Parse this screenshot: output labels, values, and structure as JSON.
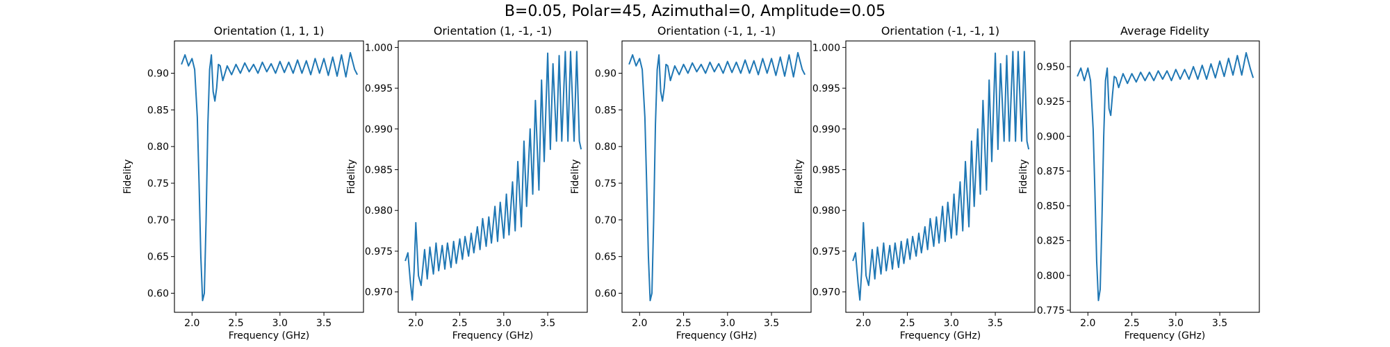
{
  "figure": {
    "suptitle": "B=0.05, Polar=45, Azimuthal=0, Amplitude=0.05",
    "line_color": "#1f77b4"
  },
  "chart_data": [
    {
      "type": "line",
      "title": "Orientation (1, 1, 1)",
      "xlabel": "Frequency (GHz)",
      "ylabel": "Fidelity",
      "xlim": [
        1.8,
        3.95
      ],
      "ylim": [
        0.574,
        0.944
      ],
      "xticks": [
        2.0,
        2.5,
        3.0,
        3.5
      ],
      "xtick_labels": [
        "2.0",
        "2.5",
        "3.0",
        "3.5"
      ],
      "yticks": [
        0.6,
        0.65,
        0.7,
        0.75,
        0.8,
        0.85,
        0.9
      ],
      "ytick_labels": [
        "0.60",
        "0.65",
        "0.70",
        "0.75",
        "0.80",
        "0.85",
        "0.90"
      ],
      "grid": false,
      "series": [
        {
          "x": [
            1.88,
            1.92,
            1.96,
            2.0,
            2.03,
            2.06,
            2.08,
            2.1,
            2.12,
            2.14,
            2.16,
            2.18,
            2.2,
            2.22,
            2.24,
            2.26,
            2.28,
            2.3,
            2.32,
            2.35,
            2.4,
            2.45,
            2.5,
            2.55,
            2.6,
            2.65,
            2.7,
            2.75,
            2.8,
            2.85,
            2.9,
            2.95,
            3.0,
            3.05,
            3.1,
            3.15,
            3.2,
            3.25,
            3.3,
            3.35,
            3.4,
            3.45,
            3.5,
            3.55,
            3.6,
            3.65,
            3.7,
            3.75,
            3.8,
            3.85,
            3.88
          ],
          "y": [
            0.912,
            0.925,
            0.91,
            0.92,
            0.905,
            0.84,
            0.75,
            0.65,
            0.59,
            0.6,
            0.7,
            0.83,
            0.905,
            0.925,
            0.875,
            0.862,
            0.88,
            0.912,
            0.91,
            0.89,
            0.91,
            0.898,
            0.912,
            0.9,
            0.914,
            0.902,
            0.912,
            0.9,
            0.915,
            0.902,
            0.913,
            0.9,
            0.916,
            0.901,
            0.915,
            0.9,
            0.918,
            0.9,
            0.917,
            0.898,
            0.92,
            0.9,
            0.92,
            0.897,
            0.922,
            0.896,
            0.925,
            0.895,
            0.928,
            0.905,
            0.898
          ]
        }
      ]
    },
    {
      "type": "line",
      "title": "Orientation (1, -1, -1)",
      "xlabel": "Frequency (GHz)",
      "ylabel": "Fidelity",
      "xlim": [
        1.8,
        3.95
      ],
      "ylim": [
        0.9675,
        1.0008
      ],
      "xticks": [
        2.0,
        2.5,
        3.0,
        3.5
      ],
      "xtick_labels": [
        "2.0",
        "2.5",
        "3.0",
        "3.5"
      ],
      "yticks": [
        0.97,
        0.975,
        0.98,
        0.985,
        0.99,
        0.995,
        1.0
      ],
      "ytick_labels": [
        "0.970",
        "0.975",
        "0.980",
        "0.985",
        "0.990",
        "0.995",
        "1.000"
      ],
      "grid": false,
      "series": [
        {
          "x": [
            1.88,
            1.91,
            1.94,
            1.96,
            1.98,
            2.0,
            2.03,
            2.06,
            2.1,
            2.13,
            2.16,
            2.2,
            2.23,
            2.26,
            2.3,
            2.33,
            2.36,
            2.4,
            2.43,
            2.46,
            2.5,
            2.53,
            2.56,
            2.6,
            2.63,
            2.66,
            2.7,
            2.73,
            2.76,
            2.8,
            2.83,
            2.86,
            2.9,
            2.93,
            2.96,
            3.0,
            3.03,
            3.06,
            3.1,
            3.13,
            3.16,
            3.2,
            3.23,
            3.26,
            3.3,
            3.33,
            3.36,
            3.4,
            3.43,
            3.46,
            3.5,
            3.53,
            3.56,
            3.6,
            3.63,
            3.66,
            3.7,
            3.73,
            3.76,
            3.8,
            3.83,
            3.86,
            3.88
          ],
          "y": [
            0.9738,
            0.9748,
            0.971,
            0.969,
            0.9725,
            0.9785,
            0.972,
            0.9708,
            0.9752,
            0.9716,
            0.9755,
            0.9722,
            0.976,
            0.9726,
            0.9757,
            0.9728,
            0.976,
            0.973,
            0.9762,
            0.9735,
            0.9765,
            0.974,
            0.9768,
            0.9744,
            0.9772,
            0.9748,
            0.978,
            0.9752,
            0.979,
            0.9756,
            0.9792,
            0.976,
            0.9805,
            0.9762,
            0.981,
            0.9766,
            0.982,
            0.977,
            0.9835,
            0.9775,
            0.986,
            0.978,
            0.9885,
            0.9805,
            0.99,
            0.982,
            0.9935,
            0.9825,
            0.996,
            0.986,
            0.9993,
            0.9875,
            0.998,
            0.9885,
            0.999,
            0.9885,
            0.9995,
            0.9885,
            0.9995,
            0.9885,
            0.9995,
            0.9885,
            0.9875
          ]
        }
      ]
    },
    {
      "type": "line",
      "title": "Orientation (-1, 1, -1)",
      "xlabel": "Frequency (GHz)",
      "ylabel": "Fidelity",
      "xlim": [
        1.8,
        3.95
      ],
      "ylim": [
        0.574,
        0.944
      ],
      "xticks": [
        2.0,
        2.5,
        3.0,
        3.5
      ],
      "xtick_labels": [
        "2.0",
        "2.5",
        "3.0",
        "3.5"
      ],
      "yticks": [
        0.6,
        0.65,
        0.7,
        0.75,
        0.8,
        0.85,
        0.9
      ],
      "ytick_labels": [
        "0.60",
        "0.65",
        "0.70",
        "0.75",
        "0.80",
        "0.85",
        "0.90"
      ],
      "grid": false,
      "series": [
        {
          "x": [
            1.88,
            1.92,
            1.96,
            2.0,
            2.03,
            2.06,
            2.08,
            2.1,
            2.12,
            2.14,
            2.16,
            2.18,
            2.2,
            2.22,
            2.24,
            2.26,
            2.28,
            2.3,
            2.32,
            2.35,
            2.4,
            2.45,
            2.5,
            2.55,
            2.6,
            2.65,
            2.7,
            2.75,
            2.8,
            2.85,
            2.9,
            2.95,
            3.0,
            3.05,
            3.1,
            3.15,
            3.2,
            3.25,
            3.3,
            3.35,
            3.4,
            3.45,
            3.5,
            3.55,
            3.6,
            3.65,
            3.7,
            3.75,
            3.8,
            3.85,
            3.88
          ],
          "y": [
            0.912,
            0.925,
            0.91,
            0.92,
            0.905,
            0.84,
            0.75,
            0.65,
            0.59,
            0.6,
            0.7,
            0.83,
            0.905,
            0.925,
            0.875,
            0.862,
            0.88,
            0.912,
            0.91,
            0.89,
            0.91,
            0.898,
            0.912,
            0.9,
            0.914,
            0.902,
            0.912,
            0.9,
            0.915,
            0.902,
            0.913,
            0.9,
            0.916,
            0.901,
            0.915,
            0.9,
            0.918,
            0.9,
            0.917,
            0.898,
            0.92,
            0.9,
            0.92,
            0.897,
            0.922,
            0.896,
            0.925,
            0.895,
            0.928,
            0.905,
            0.898
          ]
        }
      ]
    },
    {
      "type": "line",
      "title": "Orientation (-1, -1, 1)",
      "xlabel": "Frequency (GHz)",
      "ylabel": "Fidelity",
      "xlim": [
        1.8,
        3.95
      ],
      "ylim": [
        0.9675,
        1.0008
      ],
      "xticks": [
        2.0,
        2.5,
        3.0,
        3.5
      ],
      "xtick_labels": [
        "2.0",
        "2.5",
        "3.0",
        "3.5"
      ],
      "yticks": [
        0.97,
        0.975,
        0.98,
        0.985,
        0.99,
        0.995,
        1.0
      ],
      "ytick_labels": [
        "0.970",
        "0.975",
        "0.980",
        "0.985",
        "0.990",
        "0.995",
        "1.000"
      ],
      "grid": false,
      "series": [
        {
          "x": [
            1.88,
            1.91,
            1.94,
            1.96,
            1.98,
            2.0,
            2.03,
            2.06,
            2.1,
            2.13,
            2.16,
            2.2,
            2.23,
            2.26,
            2.3,
            2.33,
            2.36,
            2.4,
            2.43,
            2.46,
            2.5,
            2.53,
            2.56,
            2.6,
            2.63,
            2.66,
            2.7,
            2.73,
            2.76,
            2.8,
            2.83,
            2.86,
            2.9,
            2.93,
            2.96,
            3.0,
            3.03,
            3.06,
            3.1,
            3.13,
            3.16,
            3.2,
            3.23,
            3.26,
            3.3,
            3.33,
            3.36,
            3.4,
            3.43,
            3.46,
            3.5,
            3.53,
            3.56,
            3.6,
            3.63,
            3.66,
            3.7,
            3.73,
            3.76,
            3.8,
            3.83,
            3.86,
            3.88
          ],
          "y": [
            0.9738,
            0.9748,
            0.971,
            0.969,
            0.9725,
            0.9785,
            0.972,
            0.9708,
            0.9752,
            0.9716,
            0.9755,
            0.9722,
            0.976,
            0.9726,
            0.9757,
            0.9728,
            0.976,
            0.973,
            0.9762,
            0.9735,
            0.9765,
            0.974,
            0.9768,
            0.9744,
            0.9772,
            0.9748,
            0.978,
            0.9752,
            0.979,
            0.9756,
            0.9792,
            0.976,
            0.9805,
            0.9762,
            0.981,
            0.9766,
            0.982,
            0.977,
            0.9835,
            0.9775,
            0.986,
            0.978,
            0.9885,
            0.9805,
            0.99,
            0.982,
            0.9935,
            0.9825,
            0.996,
            0.986,
            0.9993,
            0.9875,
            0.998,
            0.9885,
            0.999,
            0.9885,
            0.9995,
            0.9885,
            0.9995,
            0.9885,
            0.9995,
            0.9885,
            0.9875
          ]
        }
      ]
    },
    {
      "type": "line",
      "title": "Average Fidelity",
      "xlabel": "Frequency (GHz)",
      "ylabel": "Fidelity",
      "xlim": [
        1.8,
        3.95
      ],
      "ylim": [
        0.7735,
        0.9685
      ],
      "xticks": [
        2.0,
        2.5,
        3.0,
        3.5
      ],
      "xtick_labels": [
        "2.0",
        "2.5",
        "3.0",
        "3.5"
      ],
      "yticks": [
        0.775,
        0.8,
        0.825,
        0.85,
        0.875,
        0.9,
        0.925,
        0.95
      ],
      "ytick_labels": [
        "0.775",
        "0.800",
        "0.825",
        "0.850",
        "0.875",
        "0.900",
        "0.925",
        "0.950"
      ],
      "grid": false,
      "series": [
        {
          "x": [
            1.88,
            1.92,
            1.96,
            2.0,
            2.03,
            2.06,
            2.08,
            2.1,
            2.12,
            2.14,
            2.16,
            2.18,
            2.2,
            2.22,
            2.24,
            2.26,
            2.28,
            2.3,
            2.32,
            2.35,
            2.4,
            2.45,
            2.5,
            2.55,
            2.6,
            2.65,
            2.7,
            2.75,
            2.8,
            2.85,
            2.9,
            2.95,
            3.0,
            3.05,
            3.1,
            3.15,
            3.2,
            3.25,
            3.3,
            3.35,
            3.4,
            3.45,
            3.5,
            3.55,
            3.6,
            3.65,
            3.7,
            3.75,
            3.8,
            3.85,
            3.88
          ],
          "y": [
            0.943,
            0.949,
            0.94,
            0.949,
            0.94,
            0.905,
            0.86,
            0.81,
            0.782,
            0.79,
            0.84,
            0.9,
            0.94,
            0.949,
            0.92,
            0.915,
            0.93,
            0.943,
            0.942,
            0.935,
            0.945,
            0.938,
            0.945,
            0.939,
            0.946,
            0.94,
            0.946,
            0.94,
            0.947,
            0.941,
            0.947,
            0.94,
            0.948,
            0.941,
            0.948,
            0.941,
            0.95,
            0.941,
            0.951,
            0.941,
            0.952,
            0.942,
            0.954,
            0.943,
            0.956,
            0.944,
            0.958,
            0.944,
            0.96,
            0.948,
            0.942
          ]
        }
      ]
    }
  ]
}
